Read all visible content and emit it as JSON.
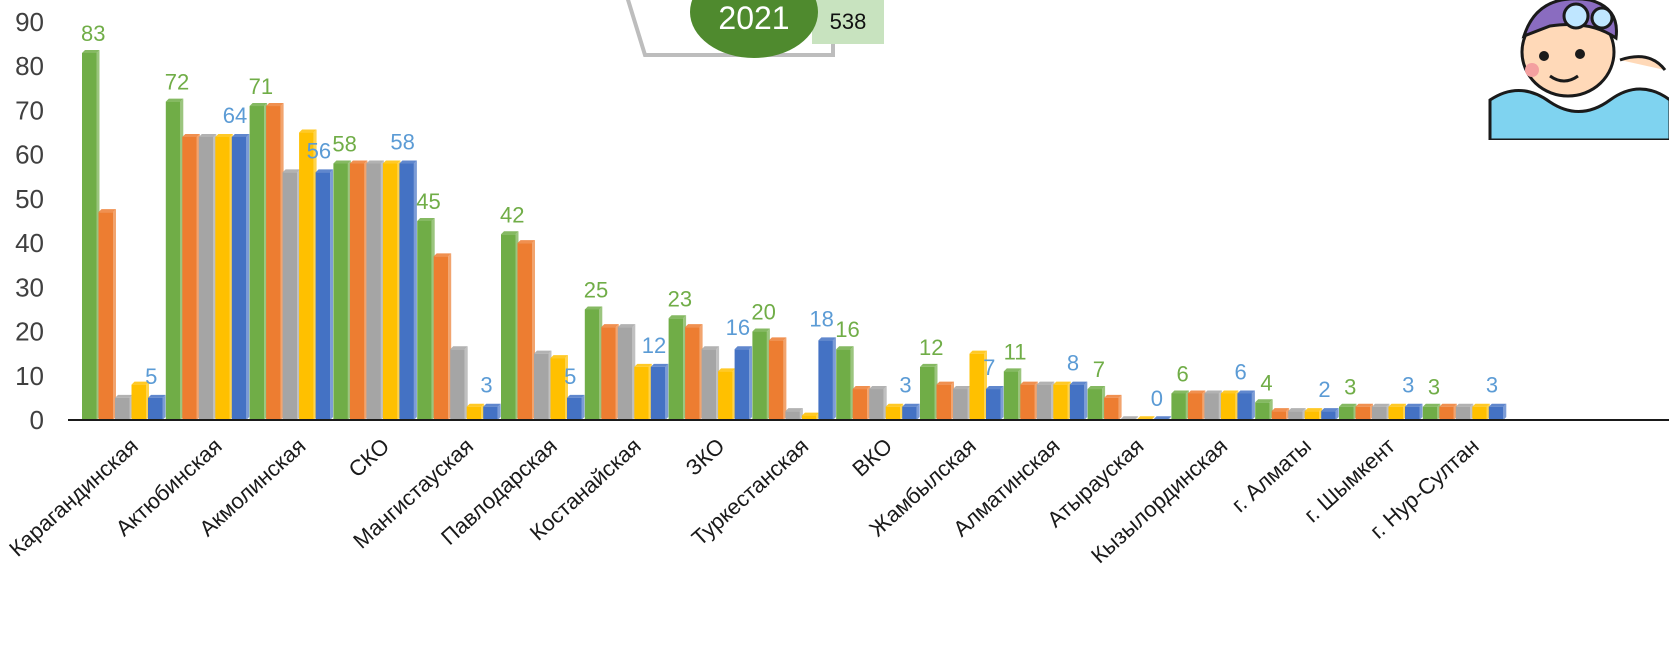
{
  "legend": {
    "year": "2021",
    "count": "538"
  },
  "colors": {
    "series_1": "#70ad47",
    "series_2": "#ed7d31",
    "series_3": "#a5a5a5",
    "series_4": "#ffc000",
    "series_5": "#4472c4",
    "label_first": "#70ad47",
    "label_last": "#5b9bd5"
  },
  "chart_data": {
    "type": "bar",
    "ylim": [
      0,
      90
    ],
    "yticks": [
      "0",
      "10",
      "20",
      "30",
      "40",
      "50",
      "60",
      "70",
      "80",
      "90"
    ],
    "categories": [
      "Карагандинская",
      "Актюбинская",
      "Акмолинская",
      "СКО",
      "Мангистауская",
      "Павлодарская",
      "Костанайская",
      "ЗКО",
      "Туркестанская",
      "ВКО",
      "Жамбылская",
      "Алматинская",
      "Атырауская",
      "Кызылординская",
      "г. Алматы",
      "г. Шымкент",
      "г. Нур-Султан"
    ],
    "series": [
      {
        "values": [
          83,
          72,
          71,
          58,
          45,
          42,
          25,
          23,
          20,
          16,
          12,
          11,
          7,
          6,
          4,
          3,
          3
        ]
      },
      {
        "values": [
          47,
          64,
          71,
          58,
          37,
          40,
          21,
          21,
          18,
          7,
          8,
          8,
          5,
          6,
          2,
          3,
          3
        ]
      },
      {
        "values": [
          5,
          64,
          56,
          58,
          16,
          15,
          21,
          16,
          2,
          7,
          7,
          8,
          0,
          6,
          2,
          3,
          3
        ]
      },
      {
        "values": [
          8,
          64,
          65,
          58,
          3,
          14,
          12,
          11,
          1,
          3,
          15,
          8,
          0,
          6,
          2,
          3,
          3
        ]
      },
      {
        "values": [
          5,
          64,
          56,
          58,
          3,
          5,
          12,
          16,
          18,
          3,
          7,
          8,
          0,
          6,
          2,
          3,
          3
        ]
      }
    ],
    "labels_first": [
      "83",
      "72",
      "71",
      "58",
      "45",
      "42",
      "25",
      "23",
      "20",
      "16",
      "12",
      "11",
      "7",
      "6",
      "4",
      "3",
      "3"
    ],
    "labels_last": [
      "5",
      "64",
      "56",
      "58",
      "3",
      "5",
      "12",
      "16",
      "18",
      "3",
      "7",
      "8",
      "0",
      "6",
      "2",
      "3",
      "3"
    ]
  }
}
